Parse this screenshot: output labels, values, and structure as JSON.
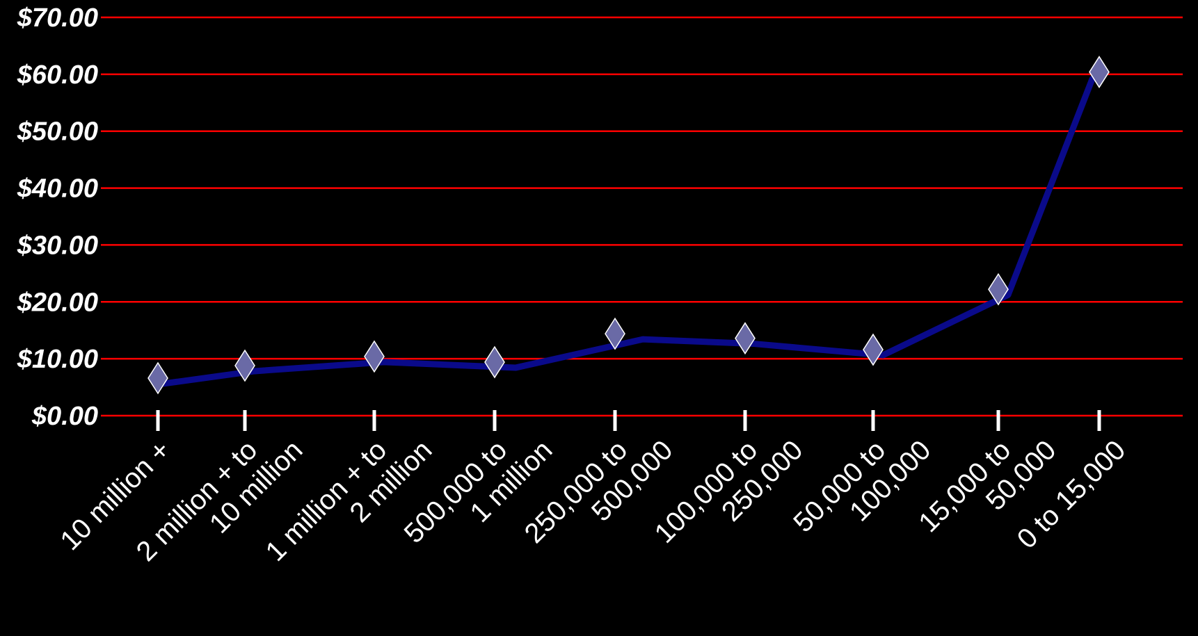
{
  "chart_data": {
    "type": "line",
    "title": "",
    "xlabel": "",
    "ylabel": "",
    "categories": [
      [
        "10 million +"
      ],
      [
        "2 million + to",
        "10 million"
      ],
      [
        "1 million + to",
        "2 million"
      ],
      [
        "500,000 to",
        "1 million"
      ],
      [
        "250,000 to",
        "500,000"
      ],
      [
        "100,000 to",
        "250,000"
      ],
      [
        "50,000 to",
        "100,000"
      ],
      [
        "15,000 to",
        "50,000"
      ],
      [
        "0 to 15,000"
      ]
    ],
    "series": [
      {
        "values": [
          6.6,
          8.8,
          10.4,
          9.4,
          14.4,
          13.6,
          11.6,
          22.2,
          60.4
        ]
      }
    ],
    "ylim": [
      0,
      70
    ],
    "yticks": [
      "$0.00",
      "$10.00",
      "$20.00",
      "$30.00",
      "$40.00",
      "$50.00",
      "$60.00",
      "$70.00"
    ],
    "grid": true,
    "legend": "none",
    "colors": {
      "background": "#000000",
      "gridline": "#ff0000",
      "line": "#0a0a8a",
      "marker_fill": "#6a6aa6",
      "marker_stroke": "#ffffff",
      "text": "#ffffff",
      "tick_mark": "#ffffff"
    },
    "marker": "diamond-icon"
  }
}
